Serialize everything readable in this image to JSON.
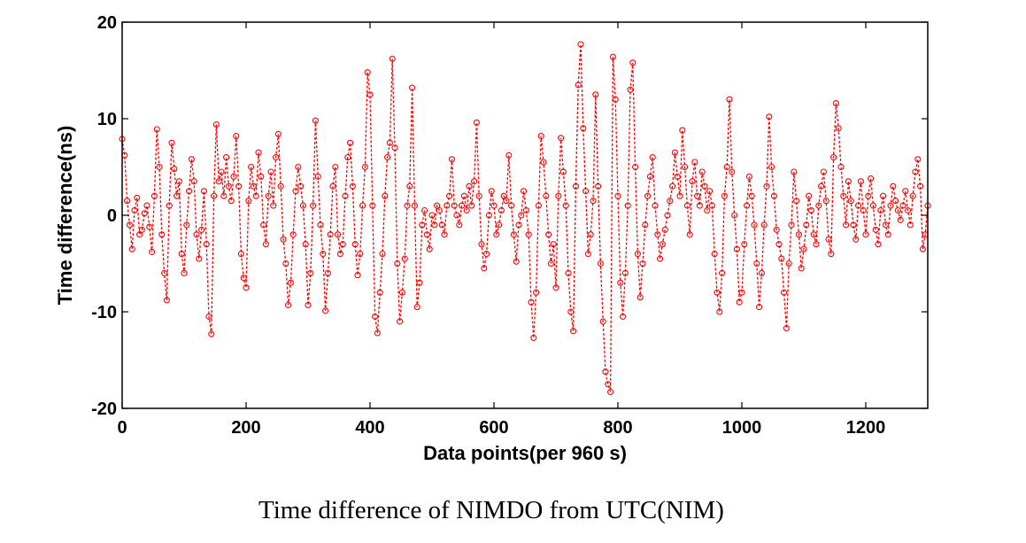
{
  "caption": "Time difference of NIMDO from UTC(NIM)",
  "chart_data": {
    "type": "line",
    "title": "",
    "xlabel": "Data points(per 960 s)",
    "ylabel": "Time difference(ns)",
    "xlim": [
      0,
      1300
    ],
    "ylim": [
      -20,
      20
    ],
    "xticks": [
      0,
      200,
      400,
      600,
      800,
      1000,
      1200
    ],
    "yticks": [
      -20,
      -10,
      0,
      10,
      20
    ],
    "grid": false,
    "legend": "none",
    "series_color": "#ff0000",
    "line_style": "dashed",
    "marker": "circle",
    "series": [
      {
        "points": [
          [
            0,
            7.9
          ],
          [
            4,
            6.2
          ],
          [
            8,
            1.5
          ],
          [
            12,
            -1.0
          ],
          [
            16,
            -3.5
          ],
          [
            20,
            0.5
          ],
          [
            24,
            1.8
          ],
          [
            28,
            -2.0
          ],
          [
            32,
            -1.5
          ],
          [
            36,
            0.2
          ],
          [
            40,
            1.0
          ],
          [
            44,
            -1.2
          ],
          [
            48,
            -3.8
          ],
          [
            52,
            2.0
          ],
          [
            56,
            8.9
          ],
          [
            60,
            5.0
          ],
          [
            64,
            -2.0
          ],
          [
            68,
            -6.0
          ],
          [
            72,
            -8.8
          ],
          [
            76,
            1.0
          ],
          [
            80,
            7.5
          ],
          [
            84,
            4.8
          ],
          [
            88,
            2.0
          ],
          [
            92,
            3.5
          ],
          [
            96,
            -4.0
          ],
          [
            100,
            -6.0
          ],
          [
            104,
            -1.0
          ],
          [
            108,
            2.5
          ],
          [
            112,
            5.8
          ],
          [
            116,
            3.5
          ],
          [
            120,
            -2.0
          ],
          [
            124,
            -4.5
          ],
          [
            128,
            -1.5
          ],
          [
            132,
            2.5
          ],
          [
            136,
            -3.0
          ],
          [
            140,
            -10.5
          ],
          [
            144,
            -12.3
          ],
          [
            148,
            2.0
          ],
          [
            152,
            9.4
          ],
          [
            156,
            3.5
          ],
          [
            160,
            4.5
          ],
          [
            164,
            2.0
          ],
          [
            168,
            6.0
          ],
          [
            172,
            3.0
          ],
          [
            176,
            1.5
          ],
          [
            180,
            4.0
          ],
          [
            184,
            8.2
          ],
          [
            188,
            3.0
          ],
          [
            192,
            -4.0
          ],
          [
            196,
            -6.5
          ],
          [
            200,
            -7.5
          ],
          [
            204,
            1.5
          ],
          [
            208,
            5.0
          ],
          [
            212,
            3.0
          ],
          [
            216,
            2.0
          ],
          [
            220,
            6.5
          ],
          [
            224,
            4.0
          ],
          [
            228,
            -1.0
          ],
          [
            232,
            -3.0
          ],
          [
            236,
            2.0
          ],
          [
            240,
            4.5
          ],
          [
            244,
            1.0
          ],
          [
            248,
            6.0
          ],
          [
            252,
            8.4
          ],
          [
            256,
            3.0
          ],
          [
            260,
            -2.5
          ],
          [
            264,
            -5.0
          ],
          [
            268,
            -9.3
          ],
          [
            272,
            -7.0
          ],
          [
            276,
            -2.0
          ],
          [
            280,
            2.5
          ],
          [
            284,
            5.0
          ],
          [
            288,
            3.0
          ],
          [
            292,
            1.0
          ],
          [
            296,
            -3.0
          ],
          [
            300,
            -9.3
          ],
          [
            304,
            -6.0
          ],
          [
            308,
            1.0
          ],
          [
            312,
            9.8
          ],
          [
            316,
            4.0
          ],
          [
            320,
            -1.0
          ],
          [
            324,
            -4.0
          ],
          [
            328,
            -9.9
          ],
          [
            332,
            -6.0
          ],
          [
            336,
            -2.0
          ],
          [
            340,
            3.0
          ],
          [
            344,
            5.0
          ],
          [
            348,
            -2.0
          ],
          [
            352,
            -4.0
          ],
          [
            356,
            -3.0
          ],
          [
            360,
            2.0
          ],
          [
            364,
            6.0
          ],
          [
            368,
            7.5
          ],
          [
            372,
            3.0
          ],
          [
            376,
            -3.0
          ],
          [
            380,
            -6.2
          ],
          [
            384,
            -4.0
          ],
          [
            388,
            1.0
          ],
          [
            392,
            5.0
          ],
          [
            396,
            14.8
          ],
          [
            400,
            12.5
          ],
          [
            404,
            1.0
          ],
          [
            408,
            -10.5
          ],
          [
            412,
            -12.2
          ],
          [
            416,
            -8.0
          ],
          [
            420,
            -4.0
          ],
          [
            424,
            2.0
          ],
          [
            428,
            6.0
          ],
          [
            432,
            7.5
          ],
          [
            436,
            16.2
          ],
          [
            440,
            7.0
          ],
          [
            444,
            -5.0
          ],
          [
            448,
            -11.0
          ],
          [
            452,
            -8.0
          ],
          [
            456,
            -4.5
          ],
          [
            460,
            1.0
          ],
          [
            464,
            3.0
          ],
          [
            468,
            13.2
          ],
          [
            472,
            1.0
          ],
          [
            476,
            -9.5
          ],
          [
            480,
            -7.0
          ],
          [
            484,
            -1.0
          ],
          [
            488,
            0.5
          ],
          [
            492,
            -2.0
          ],
          [
            496,
            -3.5
          ],
          [
            500,
            0.0
          ],
          [
            504,
            -1.0
          ],
          [
            508,
            1.0
          ],
          [
            512,
            0.5
          ],
          [
            516,
            -1.0
          ],
          [
            520,
            -2.0
          ],
          [
            524,
            1.0
          ],
          [
            528,
            2.0
          ],
          [
            532,
            5.8
          ],
          [
            536,
            1.0
          ],
          [
            540,
            0.0
          ],
          [
            544,
            -1.0
          ],
          [
            548,
            1.0
          ],
          [
            552,
            2.0
          ],
          [
            556,
            0.5
          ],
          [
            560,
            3.0
          ],
          [
            564,
            1.0
          ],
          [
            568,
            3.5
          ],
          [
            572,
            9.6
          ],
          [
            576,
            2.0
          ],
          [
            580,
            -3.0
          ],
          [
            584,
            -5.5
          ],
          [
            588,
            -4.0
          ],
          [
            592,
            0.0
          ],
          [
            596,
            2.5
          ],
          [
            600,
            1.0
          ],
          [
            604,
            -2.0
          ],
          [
            608,
            -1.0
          ],
          [
            612,
            0.5
          ],
          [
            616,
            2.0
          ],
          [
            620,
            1.5
          ],
          [
            624,
            6.2
          ],
          [
            628,
            1.0
          ],
          [
            632,
            -2.0
          ],
          [
            636,
            -4.8
          ],
          [
            640,
            -1.0
          ],
          [
            644,
            0.0
          ],
          [
            648,
            2.5
          ],
          [
            652,
            0.5
          ],
          [
            656,
            -2.0
          ],
          [
            660,
            -9.0
          ],
          [
            664,
            -12.7
          ],
          [
            668,
            -8.0
          ],
          [
            672,
            1.0
          ],
          [
            676,
            8.2
          ],
          [
            680,
            5.5
          ],
          [
            684,
            2.0
          ],
          [
            688,
            -2.0
          ],
          [
            692,
            -5.0
          ],
          [
            696,
            -3.0
          ],
          [
            700,
            -7.5
          ],
          [
            704,
            2.0
          ],
          [
            708,
            8.0
          ],
          [
            712,
            4.5
          ],
          [
            716,
            1.0
          ],
          [
            720,
            -6.0
          ],
          [
            724,
            -10.0
          ],
          [
            728,
            -12.0
          ],
          [
            732,
            3.0
          ],
          [
            736,
            13.5
          ],
          [
            740,
            17.7
          ],
          [
            744,
            9.0
          ],
          [
            748,
            2.5
          ],
          [
            752,
            -4.0
          ],
          [
            756,
            -2.0
          ],
          [
            760,
            1.5
          ],
          [
            764,
            12.5
          ],
          [
            768,
            3.0
          ],
          [
            772,
            -5.0
          ],
          [
            776,
            -11.0
          ],
          [
            780,
            -16.2
          ],
          [
            784,
            -17.5
          ],
          [
            788,
            -18.3
          ],
          [
            792,
            16.4
          ],
          [
            796,
            12.0
          ],
          [
            800,
            2.0
          ],
          [
            804,
            -7.0
          ],
          [
            808,
            -10.5
          ],
          [
            812,
            -6.0
          ],
          [
            816,
            1.0
          ],
          [
            820,
            13.0
          ],
          [
            824,
            15.8
          ],
          [
            828,
            5.0
          ],
          [
            832,
            -4.0
          ],
          [
            836,
            -8.5
          ],
          [
            840,
            -5.0
          ],
          [
            844,
            -1.0
          ],
          [
            848,
            2.0
          ],
          [
            852,
            4.0
          ],
          [
            856,
            6.0
          ],
          [
            860,
            1.0
          ],
          [
            864,
            -2.0
          ],
          [
            868,
            -4.5
          ],
          [
            872,
            -3.0
          ],
          [
            876,
            -1.5
          ],
          [
            880,
            0.0
          ],
          [
            884,
            1.5
          ],
          [
            888,
            3.0
          ],
          [
            892,
            6.5
          ],
          [
            896,
            4.0
          ],
          [
            900,
            2.0
          ],
          [
            904,
            8.8
          ],
          [
            908,
            5.0
          ],
          [
            912,
            1.0
          ],
          [
            916,
            -2.0
          ],
          [
            920,
            3.5
          ],
          [
            924,
            5.5
          ],
          [
            928,
            2.0
          ],
          [
            932,
            1.0
          ],
          [
            936,
            4.5
          ],
          [
            940,
            3.0
          ],
          [
            944,
            0.5
          ],
          [
            948,
            2.5
          ],
          [
            952,
            1.0
          ],
          [
            956,
            -4.0
          ],
          [
            960,
            -8.0
          ],
          [
            964,
            -10.0
          ],
          [
            968,
            -6.0
          ],
          [
            972,
            2.0
          ],
          [
            976,
            5.0
          ],
          [
            980,
            12.0
          ],
          [
            984,
            4.5
          ],
          [
            988,
            0.0
          ],
          [
            992,
            -3.5
          ],
          [
            996,
            -9.0
          ],
          [
            1000,
            -8.0
          ],
          [
            1004,
            -3.0
          ],
          [
            1008,
            1.0
          ],
          [
            1012,
            4.0
          ],
          [
            1016,
            2.0
          ],
          [
            1020,
            -1.0
          ],
          [
            1024,
            -5.0
          ],
          [
            1028,
            -9.5
          ],
          [
            1032,
            -6.0
          ],
          [
            1036,
            -1.0
          ],
          [
            1040,
            3.0
          ],
          [
            1044,
            10.2
          ],
          [
            1048,
            5.0
          ],
          [
            1052,
            2.0
          ],
          [
            1056,
            -1.5
          ],
          [
            1060,
            -3.0
          ],
          [
            1064,
            -4.5
          ],
          [
            1068,
            -8.0
          ],
          [
            1072,
            -11.7
          ],
          [
            1076,
            -5.0
          ],
          [
            1080,
            -1.0
          ],
          [
            1084,
            4.5
          ],
          [
            1088,
            1.5
          ],
          [
            1092,
            -2.0
          ],
          [
            1096,
            -5.5
          ],
          [
            1100,
            -3.5
          ],
          [
            1104,
            -1.0
          ],
          [
            1108,
            2.0
          ],
          [
            1112,
            0.5
          ],
          [
            1116,
            -2.0
          ],
          [
            1120,
            -3.0
          ],
          [
            1124,
            1.0
          ],
          [
            1128,
            3.0
          ],
          [
            1132,
            4.5
          ],
          [
            1136,
            1.5
          ],
          [
            1140,
            -2.5
          ],
          [
            1144,
            -4.0
          ],
          [
            1148,
            6.0
          ],
          [
            1152,
            11.6
          ],
          [
            1156,
            9.0
          ],
          [
            1160,
            5.0
          ],
          [
            1164,
            2.0
          ],
          [
            1168,
            -1.0
          ],
          [
            1172,
            3.5
          ],
          [
            1176,
            1.5
          ],
          [
            1180,
            -1.0
          ],
          [
            1184,
            -2.5
          ],
          [
            1188,
            1.0
          ],
          [
            1192,
            3.5
          ],
          [
            1196,
            0.5
          ],
          [
            1200,
            -2.0
          ],
          [
            1204,
            2.0
          ],
          [
            1208,
            3.8
          ],
          [
            1212,
            1.0
          ],
          [
            1216,
            -1.5
          ],
          [
            1220,
            -3.0
          ],
          [
            1224,
            0.5
          ],
          [
            1228,
            2.0
          ],
          [
            1232,
            -1.0
          ],
          [
            1236,
            -2.0
          ],
          [
            1240,
            1.0
          ],
          [
            1244,
            3.0
          ],
          [
            1248,
            1.5
          ],
          [
            1252,
            0.5
          ],
          [
            1256,
            -0.5
          ],
          [
            1260,
            1.0
          ],
          [
            1264,
            2.5
          ],
          [
            1268,
            0.5
          ],
          [
            1272,
            -1.0
          ],
          [
            1276,
            2.0
          ],
          [
            1280,
            4.5
          ],
          [
            1284,
            5.8
          ],
          [
            1288,
            3.0
          ],
          [
            1292,
            -3.5
          ],
          [
            1296,
            -2.0
          ],
          [
            1300,
            1.0
          ]
        ]
      }
    ]
  }
}
